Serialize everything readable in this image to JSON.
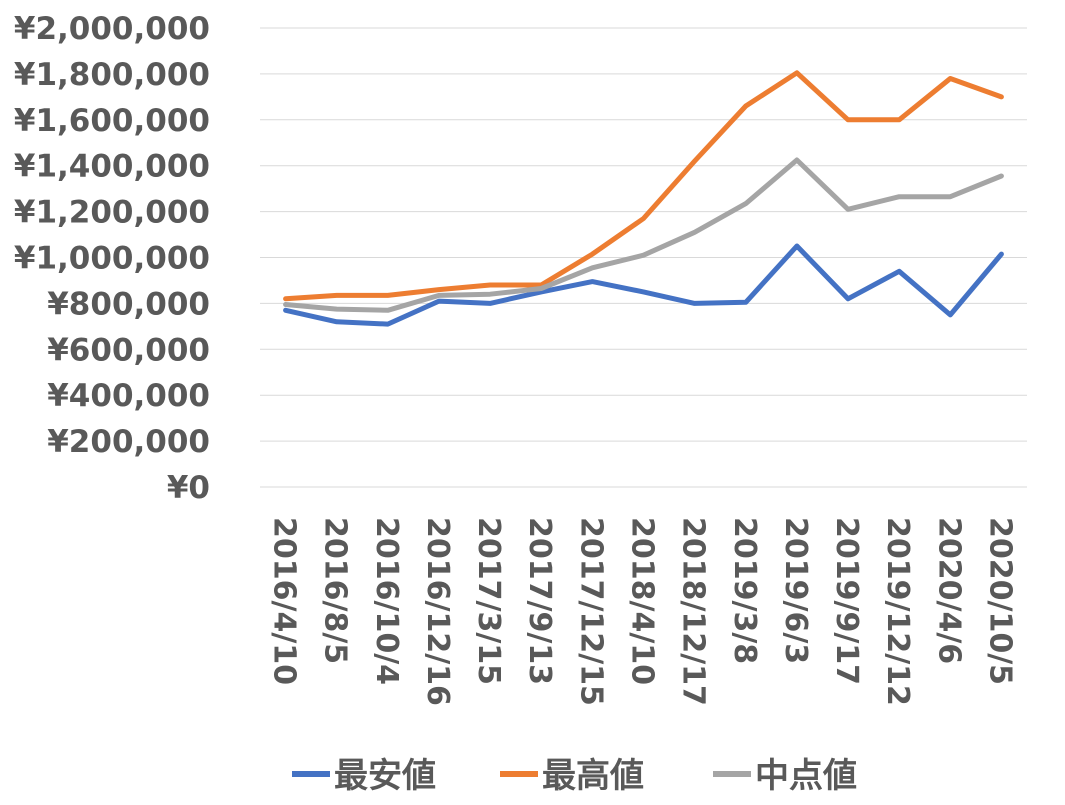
{
  "chart_data": {
    "type": "line",
    "title": "",
    "xlabel": "",
    "ylabel": "",
    "categories": [
      "2016/4/10",
      "2016/8/5",
      "2016/10/4",
      "2016/12/16",
      "2017/3/15",
      "2017/9/13",
      "2017/12/15",
      "2018/4/10",
      "2018/12/17",
      "2019/3/8",
      "2019/6/3",
      "2019/9/17",
      "2019/12/12",
      "2020/4/6",
      "2020/10/5"
    ],
    "ylim": [
      0,
      2000000
    ],
    "yticks": [
      0,
      200000,
      400000,
      600000,
      800000,
      1000000,
      1200000,
      1400000,
      1600000,
      1800000,
      2000000
    ],
    "ytick_labels": [
      "¥0",
      "¥200,000",
      "¥400,000",
      "¥600,000",
      "¥800,000",
      "¥1,000,000",
      "¥1,200,000",
      "¥1,400,000",
      "¥1,600,000",
      "¥1,800,000",
      "¥2,000,000"
    ],
    "grid": true,
    "legend_position": "bottom",
    "series": [
      {
        "name": "最安値",
        "color": "#4472C4",
        "values": [
          770000,
          720000,
          710000,
          810000,
          800000,
          850000,
          895000,
          850000,
          800000,
          805000,
          1050000,
          820000,
          940000,
          750000,
          1015000
        ]
      },
      {
        "name": "最高値",
        "color": "#ED7D31",
        "values": [
          820000,
          835000,
          835000,
          860000,
          880000,
          880000,
          1015000,
          1170000,
          1420000,
          1660000,
          1805000,
          1600000,
          1600000,
          1780000,
          1700000
        ]
      },
      {
        "name": "中点値",
        "color": "#A5A5A5",
        "values": [
          795000,
          775000,
          770000,
          835000,
          840000,
          865000,
          955000,
          1010000,
          1110000,
          1235000,
          1425000,
          1210000,
          1265000,
          1265000,
          1355000
        ]
      }
    ]
  }
}
